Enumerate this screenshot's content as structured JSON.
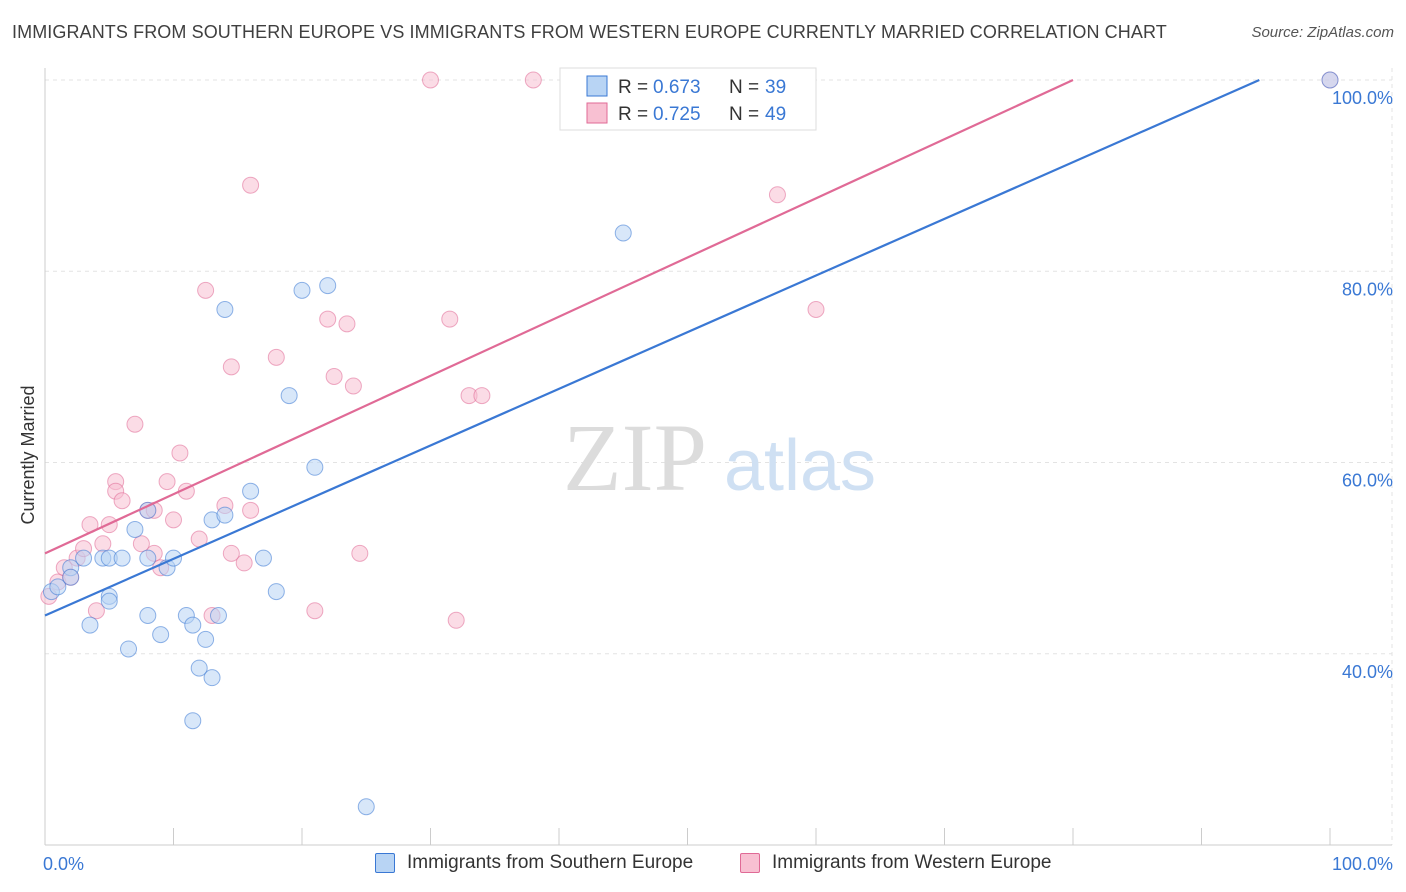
{
  "title": "IMMIGRANTS FROM SOUTHERN EUROPE VS IMMIGRANTS FROM WESTERN EUROPE CURRENTLY MARRIED CORRELATION CHART",
  "source": "Source: ZipAtlas.com",
  "watermark": {
    "zip": "ZIP",
    "atlas": "atlas"
  },
  "chart_data": {
    "type": "scatter",
    "ylabel": "Currently Married",
    "xlim": [
      0,
      100
    ],
    "ylim": [
      20,
      100
    ],
    "x_tick_labels": {
      "left": "0.0%",
      "right": "100.0%"
    },
    "y_ticks": [
      {
        "value": 100,
        "label": "100.0%"
      },
      {
        "value": 80,
        "label": "80.0%"
      },
      {
        "value": 60,
        "label": "60.0%"
      },
      {
        "value": 40,
        "label": "40.0%"
      }
    ],
    "series": [
      {
        "name": "Immigrants from Southern Europe",
        "color": "#3a78d4",
        "fill": "#b8d4f4",
        "R": "0.673",
        "N": "39",
        "trend": {
          "x0": 0,
          "y0": 44.0,
          "x1": 94.5,
          "y1": 100
        },
        "points": [
          [
            0.5,
            46.5
          ],
          [
            1,
            47
          ],
          [
            2,
            49
          ],
          [
            2,
            48
          ],
          [
            3,
            50
          ],
          [
            3.5,
            43
          ],
          [
            4.5,
            50
          ],
          [
            5,
            46
          ],
          [
            5,
            50
          ],
          [
            5,
            45.5
          ],
          [
            6,
            50
          ],
          [
            6.5,
            40.5
          ],
          [
            7,
            53
          ],
          [
            8,
            55
          ],
          [
            8,
            50
          ],
          [
            8,
            44
          ],
          [
            9,
            42
          ],
          [
            9.5,
            49
          ],
          [
            10,
            50
          ],
          [
            11,
            44
          ],
          [
            11.5,
            43
          ],
          [
            11.5,
            33
          ],
          [
            12,
            38.5
          ],
          [
            12.5,
            41.5
          ],
          [
            13,
            54
          ],
          [
            13,
            37.5
          ],
          [
            13.5,
            44
          ],
          [
            14,
            54.5
          ],
          [
            14,
            76
          ],
          [
            16,
            57
          ],
          [
            17,
            50
          ],
          [
            18,
            46.5
          ],
          [
            19,
            67
          ],
          [
            20,
            78
          ],
          [
            21,
            59.5
          ],
          [
            22,
            78.5
          ],
          [
            25,
            24
          ],
          [
            45,
            84
          ],
          [
            100,
            100
          ]
        ]
      },
      {
        "name": "Immigrants from Western Europe",
        "color": "#e06a96",
        "fill": "#f8c0d2",
        "R": "0.725",
        "N": "49",
        "trend": {
          "x0": 0,
          "y0": 50.5,
          "x1": 80,
          "y1": 100
        },
        "points": [
          [
            0.3,
            46
          ],
          [
            1,
            47.5
          ],
          [
            1.5,
            49
          ],
          [
            2,
            48
          ],
          [
            2.5,
            50
          ],
          [
            3,
            51
          ],
          [
            3.5,
            53.5
          ],
          [
            4,
            44.5
          ],
          [
            4.5,
            51.5
          ],
          [
            5,
            53.5
          ],
          [
            5.5,
            58
          ],
          [
            5.5,
            57
          ],
          [
            6,
            56
          ],
          [
            7,
            64
          ],
          [
            7.5,
            51.5
          ],
          [
            8,
            55
          ],
          [
            8.5,
            55
          ],
          [
            8.5,
            50.5
          ],
          [
            9,
            49
          ],
          [
            9.5,
            58
          ],
          [
            10,
            54
          ],
          [
            10.5,
            61
          ],
          [
            11,
            57
          ],
          [
            12,
            52
          ],
          [
            12.5,
            78
          ],
          [
            13,
            44
          ],
          [
            14,
            55.5
          ],
          [
            14.5,
            70
          ],
          [
            14.5,
            50.5
          ],
          [
            15.5,
            49.5
          ],
          [
            16,
            55
          ],
          [
            16,
            89
          ],
          [
            18,
            71
          ],
          [
            21,
            44.5
          ],
          [
            22,
            75
          ],
          [
            22.5,
            69
          ],
          [
            23.5,
            74.5
          ],
          [
            24,
            68
          ],
          [
            24.5,
            50.5
          ],
          [
            30,
            100
          ],
          [
            31.5,
            75
          ],
          [
            32,
            43.5
          ],
          [
            33,
            67
          ],
          [
            34,
            67
          ],
          [
            38,
            100
          ],
          [
            42,
            100
          ],
          [
            57,
            88
          ],
          [
            60,
            76
          ],
          [
            100,
            100
          ]
        ]
      }
    ]
  }
}
